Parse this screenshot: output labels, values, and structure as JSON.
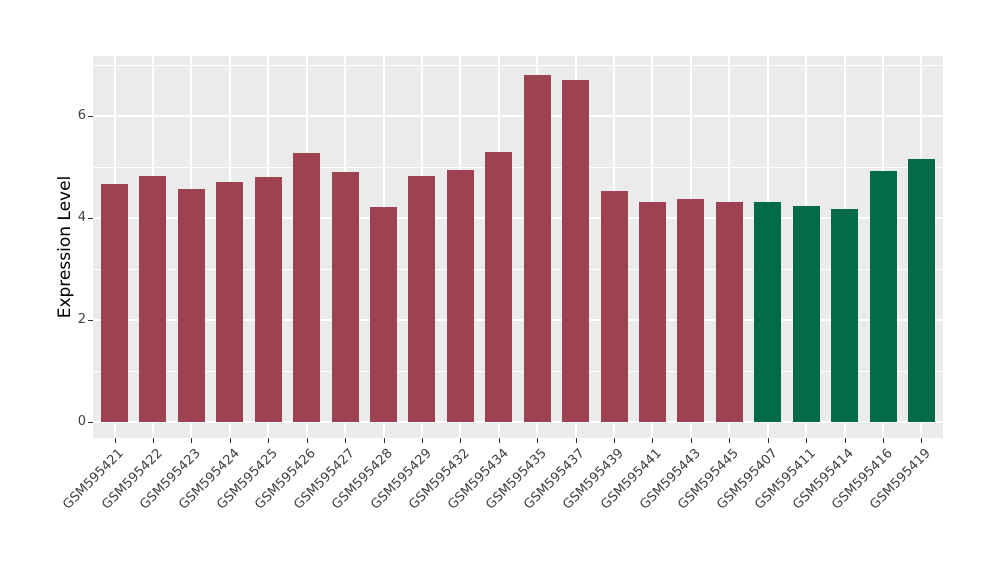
{
  "chart_data": {
    "type": "bar",
    "title": "",
    "xlabel": "",
    "ylabel": "Expression Level",
    "categories": [
      "GSM595421",
      "GSM595422",
      "GSM595423",
      "GSM595424",
      "GSM595425",
      "GSM595426",
      "GSM595427",
      "GSM595428",
      "GSM595429",
      "GSM595432",
      "GSM595434",
      "GSM595435",
      "GSM595437",
      "GSM595439",
      "GSM595441",
      "GSM595443",
      "GSM595445",
      "GSM595407",
      "GSM595411",
      "GSM595414",
      "GSM595416",
      "GSM595419"
    ],
    "values": [
      4.67,
      4.82,
      4.57,
      4.7,
      4.8,
      5.27,
      4.91,
      4.22,
      4.82,
      4.95,
      5.29,
      6.81,
      6.71,
      4.52,
      4.31,
      4.37,
      4.31,
      4.31,
      4.23,
      4.17,
      4.92,
      5.16
    ],
    "bar_colors": [
      "#9C4251",
      "#9C4251",
      "#9C4251",
      "#9C4251",
      "#9C4251",
      "#9C4251",
      "#9C4251",
      "#9C4251",
      "#9C4251",
      "#9C4251",
      "#9C4251",
      "#9C4251",
      "#9C4251",
      "#9C4251",
      "#9C4251",
      "#9C4251",
      "#9C4251",
      "#046B49",
      "#046B49",
      "#046B49",
      "#046B49",
      "#046B49"
    ],
    "ylim": [
      0,
      7.2
    ],
    "yticks": [
      0,
      2,
      4,
      6
    ],
    "yticks_minor": [
      1,
      3,
      5,
      7
    ],
    "grid": true,
    "legend": false,
    "panel_bg": "#EBEBEB",
    "grid_color": "#FFFFFF",
    "tick_color": "#333333",
    "axis_text_color": "#404040"
  }
}
